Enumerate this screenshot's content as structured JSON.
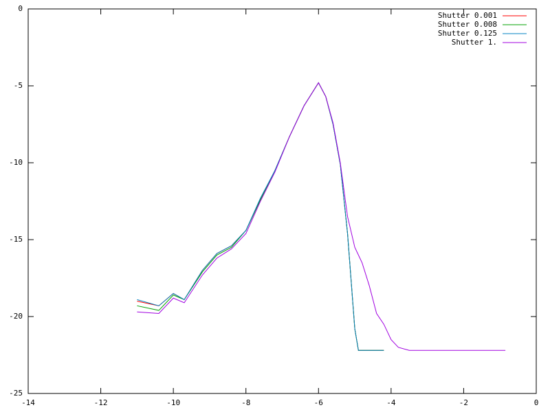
{
  "chart_data": {
    "type": "line",
    "x": [
      -11,
      -10.4,
      -10,
      -9.7,
      -9.2,
      -8.8,
      -8.4,
      -8,
      -7.6,
      -7.2,
      -6.8,
      -6.4,
      -6,
      -5.8,
      -5.6,
      -5.4,
      -5.2,
      -5,
      -4.9,
      -4.8,
      -4.6,
      -4.4,
      -4.2,
      -4,
      -3.8,
      -3.5,
      -0.85
    ],
    "series": [
      {
        "name": "Shutter 0.001",
        "color": "#ff0000",
        "values": [
          -19,
          -19.3,
          -18.5,
          -18.9,
          -17,
          -15.9,
          -15.4,
          -14.4,
          -12.4,
          -10.5,
          -8.3,
          -6.3,
          -4.8,
          -5.7,
          -7.5,
          -10.1,
          -14.6,
          -20.8,
          -22.2,
          -22.2,
          -22.2,
          -22.2,
          -22.2,
          null,
          null,
          null,
          null
        ]
      },
      {
        "name": "Shutter 0.008",
        "color": "#00a000",
        "values": [
          -19.3,
          -19.6,
          -18.6,
          -18.9,
          -17.1,
          -16,
          -15.5,
          -14.4,
          -12.4,
          -10.5,
          -8.3,
          -6.3,
          -4.8,
          -5.7,
          -7.5,
          -10.1,
          -14.6,
          -20.8,
          -22.2,
          -22.2,
          -22.2,
          -22.2,
          -22.2,
          null,
          null,
          null,
          null
        ]
      },
      {
        "name": "Shutter 0.125",
        "color": "#0080c0",
        "values": [
          -18.9,
          -19.3,
          -18.5,
          -18.9,
          -17,
          -15.9,
          -15.4,
          -14.4,
          -12.3,
          -10.5,
          -8.3,
          -6.3,
          -4.8,
          -5.7,
          -7.5,
          -10.1,
          -14.6,
          -20.8,
          -22.2,
          -22.2,
          -22.2,
          -22.2,
          -22.2,
          null,
          null,
          null,
          null
        ]
      },
      {
        "name": "Shutter 1.",
        "color": "#a000e0",
        "values": [
          -19.7,
          -19.8,
          -18.8,
          -19.1,
          -17.3,
          -16.2,
          -15.6,
          -14.6,
          -12.5,
          -10.6,
          -8.3,
          -6.3,
          -4.8,
          -5.7,
          -7.4,
          -10,
          -13.5,
          -15.5,
          -16,
          -16.5,
          -18,
          -19.8,
          -20.5,
          -21.5,
          -22,
          -22.2,
          -22.2
        ]
      }
    ],
    "xlim": [
      -14,
      0
    ],
    "xticks": [
      -14,
      -12,
      -10,
      -8,
      -6,
      -4,
      -2,
      0
    ],
    "ylim": [
      -25,
      0
    ],
    "yticks": [
      -25,
      -20,
      -15,
      -10,
      -5,
      0
    ],
    "legend": "top-right"
  }
}
